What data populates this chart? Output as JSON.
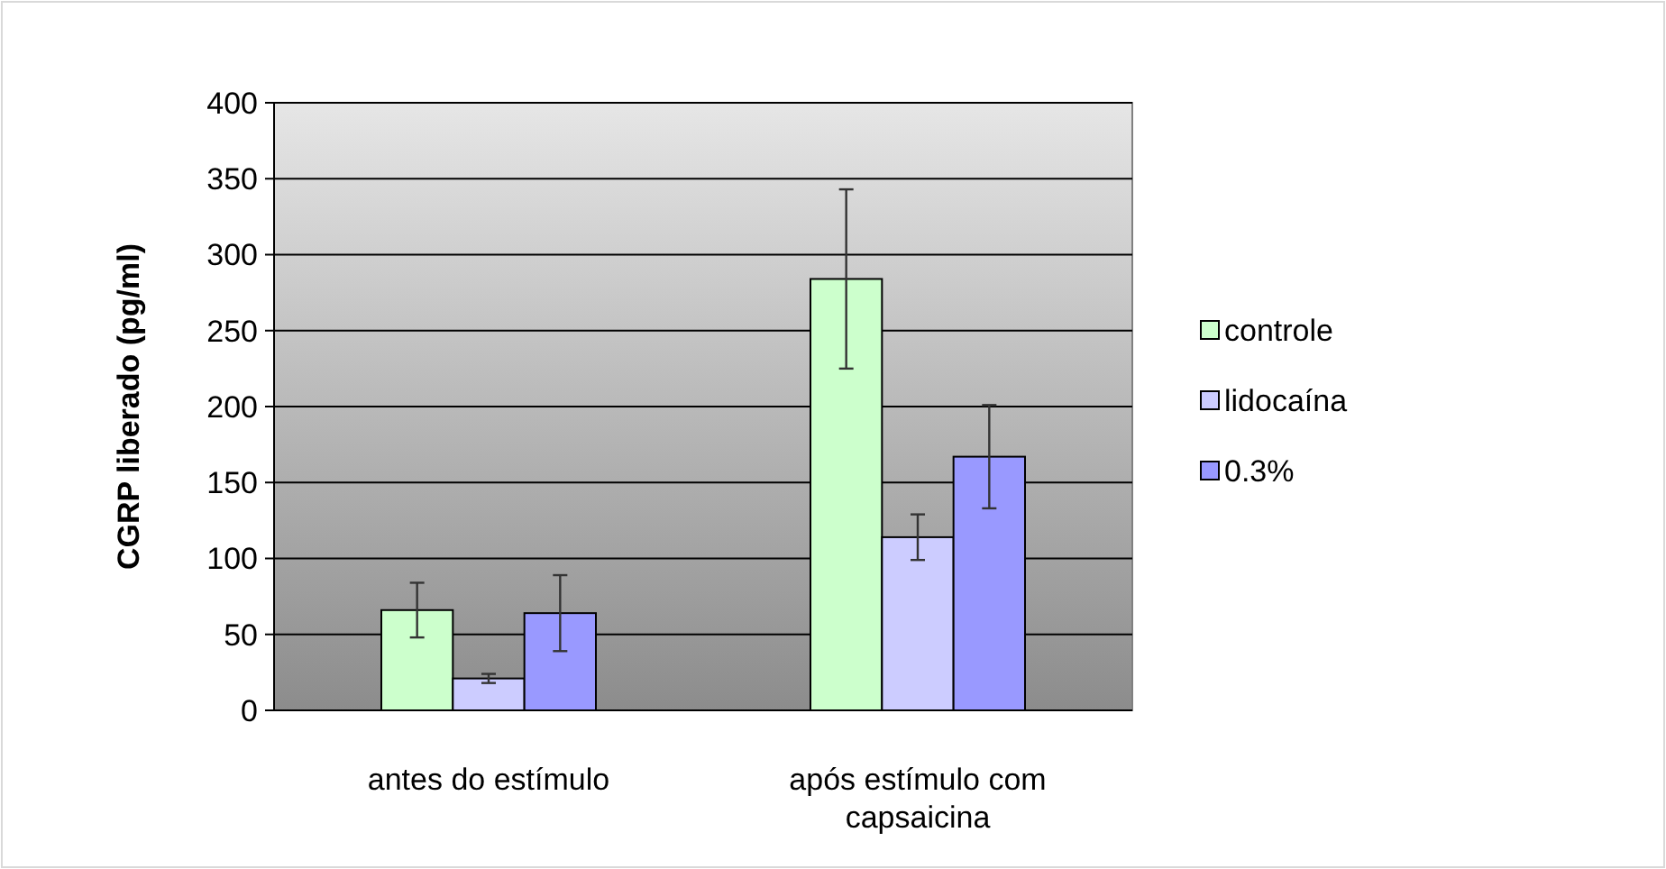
{
  "chart_data": {
    "type": "bar",
    "ylabel": "CGRP liberado (pg/ml)",
    "categories": [
      "antes do estímulo",
      "após estímulo com capsaicina"
    ],
    "series": [
      {
        "name": "controle",
        "color": "#ccffcc",
        "values": [
          66,
          284
        ],
        "errors": [
          18,
          59
        ]
      },
      {
        "name": "lidocaína",
        "color": "#ccccff",
        "values": [
          21,
          114
        ],
        "errors": [
          3,
          15
        ]
      },
      {
        "name": "0.3%",
        "color": "#9999ff",
        "values": [
          64,
          167
        ],
        "errors": [
          25,
          34
        ]
      }
    ],
    "ylim": [
      0,
      400
    ],
    "yticks": [
      0,
      50,
      100,
      150,
      200,
      250,
      300,
      350,
      400
    ],
    "grid": "y",
    "legend": "right"
  }
}
